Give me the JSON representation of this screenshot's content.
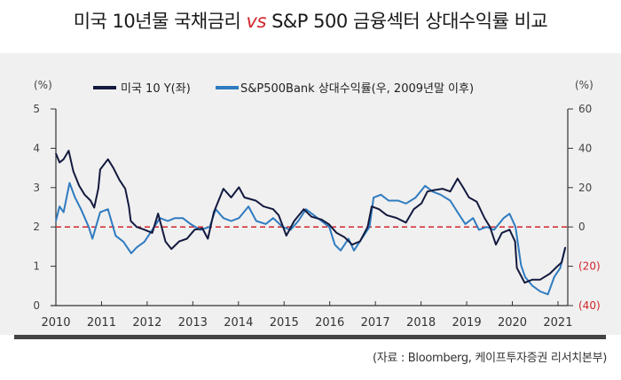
{
  "title": {
    "part1": "미국 10년물 국채금리 ",
    "vs": "vs",
    "part2": " S&P 500 금융섹터 상대수익률 비교"
  },
  "source": "(자료 : Bloomberg, 케이프투자증권 리서치본부)",
  "colors": {
    "us10y": "#141a3f",
    "bank": "#2f7bc0",
    "reference_line": "#d0262b",
    "axis": "#333333",
    "negative_label": "#d0262b"
  },
  "chart_data": {
    "type": "line",
    "title": "미국 10년물 국채금리 vs S&P 500 금융섹터 상대수익률 비교",
    "left_axis": {
      "unit_label": "(%)",
      "range": [
        0,
        5
      ],
      "ticks": [
        "0",
        "1",
        "2",
        "3",
        "4",
        "5"
      ],
      "tick_values": [
        0,
        1,
        2,
        3,
        4,
        5
      ]
    },
    "right_axis": {
      "unit_label": "(%)",
      "range": [
        -40,
        60
      ],
      "ticks": [
        "(40)",
        "(20)",
        "0",
        "20",
        "40",
        "60"
      ],
      "tick_values": [
        -40,
        -20,
        0,
        20,
        40,
        60
      ]
    },
    "x_axis": {
      "range": [
        2010,
        2021.25
      ],
      "ticks": [
        "2010",
        "2011",
        "2012",
        "2013",
        "2014",
        "2015",
        "2016",
        "2017",
        "2018",
        "2019",
        "2020",
        "2021"
      ],
      "tick_values": [
        2010,
        2011,
        2012,
        2013,
        2014,
        2015,
        2016,
        2017,
        2018,
        2019,
        2020,
        2021
      ]
    },
    "reference_line": {
      "axis": "right",
      "value": 0,
      "style": "dashed"
    },
    "legend": {
      "placement": "top"
    },
    "series": [
      {
        "name": "미국 10 Y(좌)",
        "axis": "left",
        "x": [
          2010.0,
          2010.08,
          2010.17,
          2010.28,
          2010.38,
          2010.51,
          2010.63,
          2010.76,
          2010.84,
          2010.93,
          2010.97,
          2011.14,
          2011.26,
          2011.39,
          2011.52,
          2011.6,
          2011.64,
          2011.77,
          2011.94,
          2012.11,
          2012.24,
          2012.4,
          2012.53,
          2012.7,
          2012.87,
          2013.04,
          2013.21,
          2013.33,
          2013.46,
          2013.67,
          2013.84,
          2014.01,
          2014.13,
          2014.38,
          2014.55,
          2014.76,
          2014.88,
          2015.05,
          2015.22,
          2015.43,
          2015.6,
          2015.82,
          2015.98,
          2016.15,
          2016.32,
          2016.49,
          2016.66,
          2016.83,
          2016.92,
          2017.08,
          2017.25,
          2017.46,
          2017.67,
          2017.84,
          2018.01,
          2018.14,
          2018.3,
          2018.47,
          2018.64,
          2018.8,
          2018.92,
          2019.05,
          2019.22,
          2019.39,
          2019.51,
          2019.64,
          2019.77,
          2019.94,
          2020.06,
          2020.1,
          2020.27,
          2020.44,
          2020.61,
          2020.82,
          2020.95,
          2021.08,
          2021.16
        ],
        "values": [
          3.87,
          3.64,
          3.72,
          3.94,
          3.42,
          3.05,
          2.82,
          2.67,
          2.49,
          2.97,
          3.46,
          3.72,
          3.5,
          3.2,
          2.97,
          2.52,
          2.15,
          2.0,
          1.93,
          1.85,
          2.34,
          1.63,
          1.44,
          1.63,
          1.7,
          1.93,
          1.96,
          1.7,
          2.37,
          2.97,
          2.75,
          3.01,
          2.75,
          2.67,
          2.52,
          2.45,
          2.3,
          1.78,
          2.15,
          2.45,
          2.26,
          2.19,
          2.07,
          1.85,
          1.74,
          1.55,
          1.63,
          2.0,
          2.52,
          2.45,
          2.3,
          2.23,
          2.11,
          2.45,
          2.6,
          2.9,
          2.94,
          2.97,
          2.9,
          3.23,
          3.01,
          2.75,
          2.64,
          2.23,
          2.0,
          1.55,
          1.85,
          1.93,
          1.63,
          0.96,
          0.58,
          0.66,
          0.66,
          0.81,
          0.96,
          1.1,
          1.48
        ]
      },
      {
        "name": "S&P500Bank 상대수익률(우, 2009년말 이후)",
        "axis": "right",
        "x": [
          2010.0,
          2010.08,
          2010.17,
          2010.3,
          2010.42,
          2010.55,
          2010.72,
          2010.8,
          2010.97,
          2011.14,
          2011.31,
          2011.48,
          2011.65,
          2011.77,
          2011.94,
          2012.11,
          2012.28,
          2012.45,
          2012.61,
          2012.78,
          2012.95,
          2013.16,
          2013.37,
          2013.5,
          2013.67,
          2013.84,
          2014.01,
          2014.22,
          2014.39,
          2014.6,
          2014.76,
          2014.97,
          2015.14,
          2015.31,
          2015.48,
          2015.65,
          2015.82,
          2015.99,
          2016.11,
          2016.24,
          2016.41,
          2016.53,
          2016.7,
          2016.87,
          2016.96,
          2017.12,
          2017.29,
          2017.5,
          2017.67,
          2017.88,
          2018.09,
          2018.26,
          2018.43,
          2018.64,
          2018.8,
          2018.97,
          2019.14,
          2019.27,
          2019.44,
          2019.6,
          2019.81,
          2019.94,
          2020.07,
          2020.19,
          2020.28,
          2020.44,
          2020.61,
          2020.78,
          2020.92,
          2021.05,
          2021.16
        ],
        "values": [
          3.0,
          10.4,
          7.5,
          22.4,
          14.9,
          9.0,
          0,
          -6,
          7.5,
          9.0,
          -4.5,
          -7.5,
          -13.4,
          -10.4,
          -7.5,
          -1.5,
          4.5,
          3.0,
          4.5,
          4.5,
          1.5,
          -1.5,
          0,
          9.0,
          4.5,
          3.0,
          4.5,
          10.4,
          3.0,
          1.5,
          4.5,
          0,
          -1.5,
          3.0,
          9.0,
          6.0,
          3.0,
          0,
          -9.0,
          -12,
          -6,
          -12,
          -6,
          0,
          14.9,
          16.4,
          13.4,
          13.4,
          11.9,
          14.9,
          20.9,
          17.9,
          16.4,
          13.4,
          7.5,
          1.5,
          4.5,
          -1.5,
          0,
          -1.5,
          4.5,
          6.7,
          0,
          -19.4,
          -25.4,
          -29.9,
          -32.8,
          -34.3,
          -25.4,
          -20.9,
          -10.4
        ]
      }
    ]
  }
}
